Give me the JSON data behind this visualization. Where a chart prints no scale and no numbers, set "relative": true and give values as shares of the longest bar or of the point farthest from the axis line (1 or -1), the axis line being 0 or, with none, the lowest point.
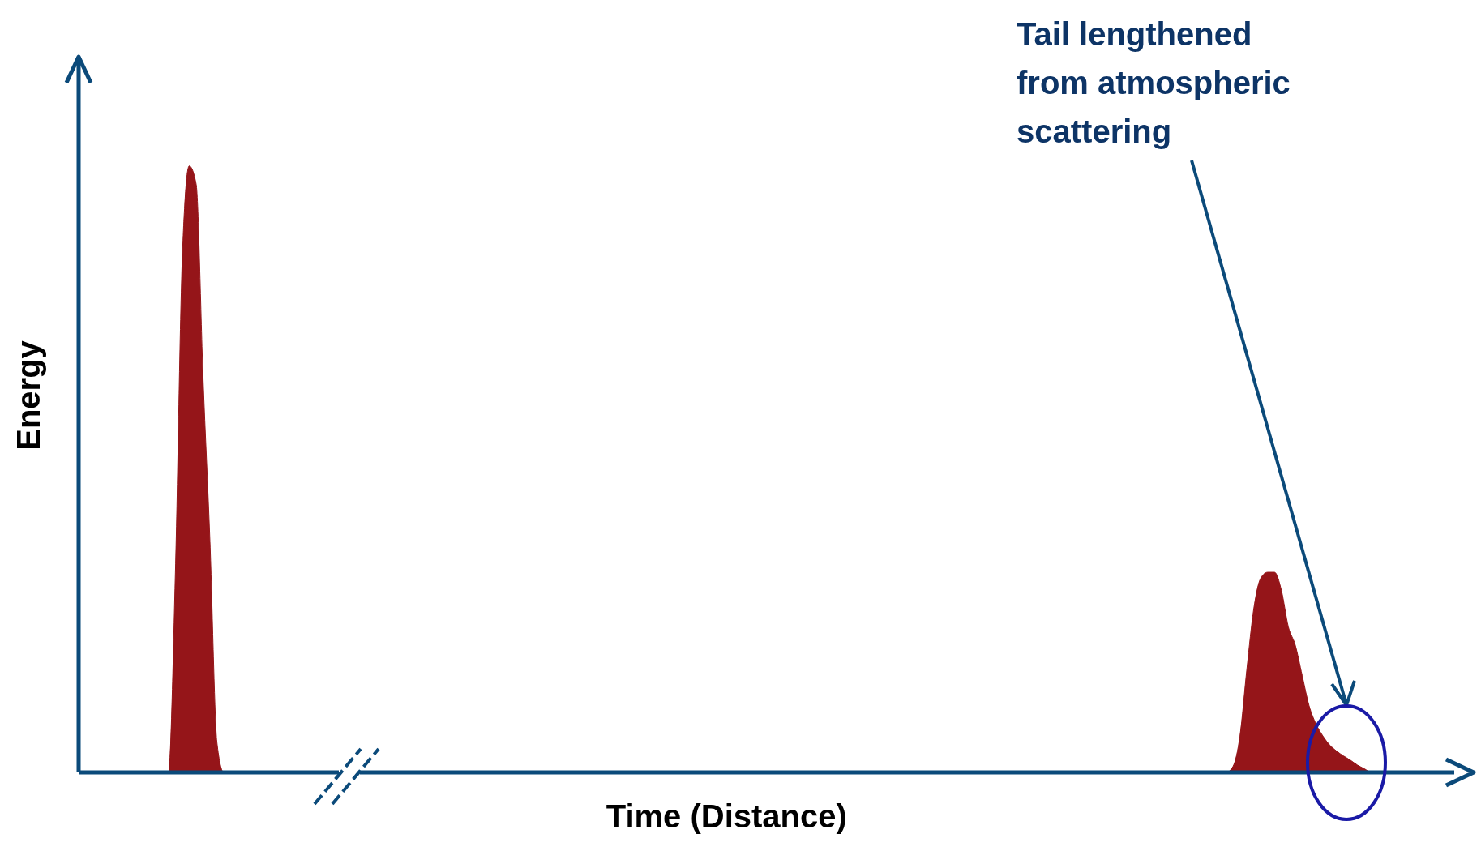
{
  "chart_data": {
    "type": "area",
    "relative": true,
    "xlabel": "Time (Distance)",
    "ylabel": "Energy",
    "color": "#951519",
    "annotations": [
      "Tail lengthened from atmospheric scattering"
    ],
    "categories": [
      null,
      null,
      null,
      null,
      null,
      null,
      null,
      null,
      null,
      null,
      null,
      null,
      null,
      null,
      null,
      null,
      null,
      null,
      null,
      null,
      null,
      null,
      null,
      null,
      null,
      null,
      null,
      null,
      null,
      null,
      null,
      null,
      null,
      null,
      null,
      null,
      null,
      null,
      null,
      null,
      null,
      null,
      null,
      null,
      null,
      null,
      null,
      null,
      null,
      null,
      null,
      null,
      null,
      null,
      null,
      null,
      null,
      null,
      null,
      null,
      null,
      null,
      null,
      null,
      null,
      null,
      null,
      null,
      null,
      null,
      null,
      null,
      null,
      null,
      null,
      null,
      null,
      null,
      null,
      null,
      null,
      null,
      null,
      null,
      null,
      null,
      null,
      null,
      null,
      null,
      null,
      null,
      null,
      null,
      null,
      null,
      null,
      null,
      null,
      null,
      null,
      null,
      null,
      null,
      null,
      null,
      null,
      null,
      null,
      null,
      null,
      null,
      null,
      null,
      null,
      null,
      null,
      null,
      null,
      null,
      null,
      null,
      null,
      null,
      null,
      null,
      null,
      null,
      null,
      null,
      null,
      null,
      null,
      null,
      null,
      null,
      null,
      null,
      null,
      null,
      null,
      null,
      null,
      null,
      null,
      null,
      null,
      null,
      null,
      null,
      null,
      null,
      null,
      null,
      null,
      null,
      null,
      null,
      null,
      null,
      null,
      null,
      null,
      null,
      null,
      null,
      null,
      null,
      null,
      null,
      null,
      null,
      null,
      null,
      null,
      null,
      null,
      null,
      null,
      null,
      null,
      null,
      null,
      null,
      null,
      null,
      null,
      null,
      null,
      null,
      null,
      null,
      null,
      null,
      null,
      null,
      null,
      null,
      null,
      null
    ],
    "values": [
      0,
      0,
      0,
      0,
      0,
      0,
      0,
      0,
      0,
      0,
      0,
      0,
      0,
      0,
      0.33,
      0.85,
      1,
      0.97,
      0.65,
      0.38,
      0.05,
      0,
      0,
      0,
      0,
      0,
      0,
      0,
      0,
      0,
      0,
      0,
      0,
      0,
      0,
      0,
      0,
      0,
      0,
      0,
      0,
      0,
      0,
      0,
      0,
      0,
      0,
      0,
      0,
      0,
      0,
      0,
      0,
      0,
      0,
      0,
      0,
      0,
      0,
      0,
      0,
      0,
      0,
      0,
      0,
      0,
      0,
      0,
      0,
      0,
      0,
      0,
      0,
      0,
      0,
      0,
      0,
      0,
      0,
      0,
      0,
      0,
      0,
      0,
      0,
      0,
      0,
      0,
      0,
      0,
      0,
      0,
      0,
      0,
      0,
      0,
      0,
      0,
      0,
      0,
      0,
      0,
      0,
      0,
      0,
      0,
      0,
      0,
      0,
      0,
      0,
      0,
      0,
      0,
      0,
      0,
      0,
      0,
      0,
      0,
      0,
      0,
      0,
      0,
      0,
      0,
      0,
      0,
      0,
      0,
      0,
      0,
      0,
      0,
      0,
      0,
      0,
      0,
      0,
      0,
      0,
      0,
      0,
      0,
      0,
      0,
      0,
      0,
      0,
      0,
      0,
      0,
      0,
      0,
      0,
      0,
      0,
      0,
      0,
      0,
      0,
      0,
      0,
      0,
      0,
      0,
      0,
      0.01,
      0.06,
      0.17,
      0.27,
      0.32,
      0.33,
      0.33,
      0.3,
      0.24,
      0.21,
      0.16,
      0.11,
      0.08,
      0.06,
      0.045,
      0.035,
      0.027,
      0.02,
      0.012,
      0.006,
      0,
      0,
      0,
      0,
      0,
      0,
      0,
      0,
      0,
      0,
      0,
      0,
      0
    ]
  }
}
